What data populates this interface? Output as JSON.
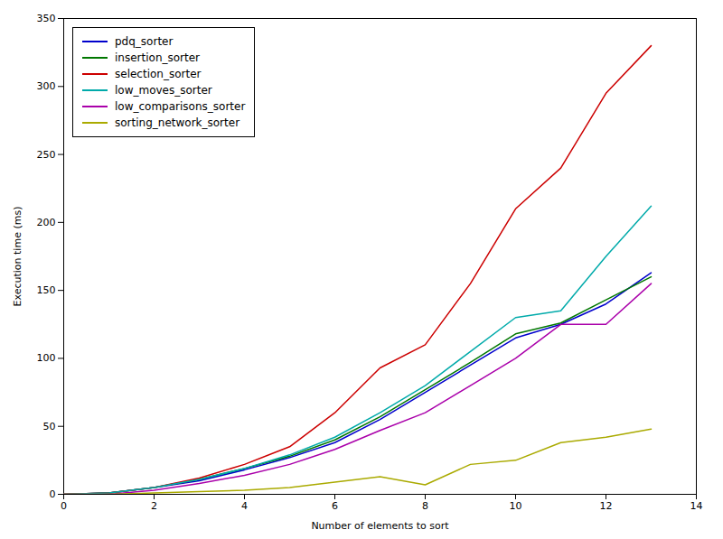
{
  "chart_data": {
    "type": "line",
    "xlabel": "Number of elements to sort",
    "ylabel": "Execution time (ms)",
    "x": [
      0,
      1,
      2,
      3,
      4,
      5,
      6,
      7,
      8,
      9,
      10,
      11,
      12,
      13
    ],
    "series": [
      {
        "name": "pdq_sorter",
        "color": "#0000cc",
        "values": [
          0,
          1,
          5,
          10,
          18,
          27,
          38,
          55,
          75,
          95,
          115,
          125,
          140,
          163
        ]
      },
      {
        "name": "insertion_sorter",
        "color": "#007700",
        "values": [
          0,
          1,
          5,
          11,
          19,
          28,
          40,
          57,
          77,
          97,
          118,
          126,
          143,
          160
        ]
      },
      {
        "name": "selection_sorter",
        "color": "#cc0000",
        "values": [
          0,
          1,
          5,
          12,
          22,
          35,
          60,
          93,
          110,
          155,
          210,
          240,
          295,
          330
        ]
      },
      {
        "name": "low_moves_sorter",
        "color": "#00aaaa",
        "values": [
          0,
          1,
          5,
          11,
          19,
          29,
          42,
          60,
          80,
          105,
          130,
          135,
          175,
          212
        ]
      },
      {
        "name": "low_comparisons_sorter",
        "color": "#aa00aa",
        "values": [
          0,
          0,
          3,
          8,
          14,
          22,
          33,
          47,
          60,
          80,
          100,
          125,
          125,
          155
        ]
      },
      {
        "name": "sorting_network_sorter",
        "color": "#aaaa00",
        "values": [
          0,
          0,
          1,
          2,
          3,
          5,
          9,
          13,
          7,
          22,
          25,
          38,
          42,
          48
        ]
      }
    ],
    "xlim": [
      0,
      14
    ],
    "ylim": [
      0,
      350
    ],
    "xticks": [
      0,
      2,
      4,
      6,
      8,
      10,
      12,
      14
    ],
    "yticks": [
      0,
      50,
      100,
      150,
      200,
      250,
      300,
      350
    ],
    "grid": false,
    "legend": "upper left"
  }
}
